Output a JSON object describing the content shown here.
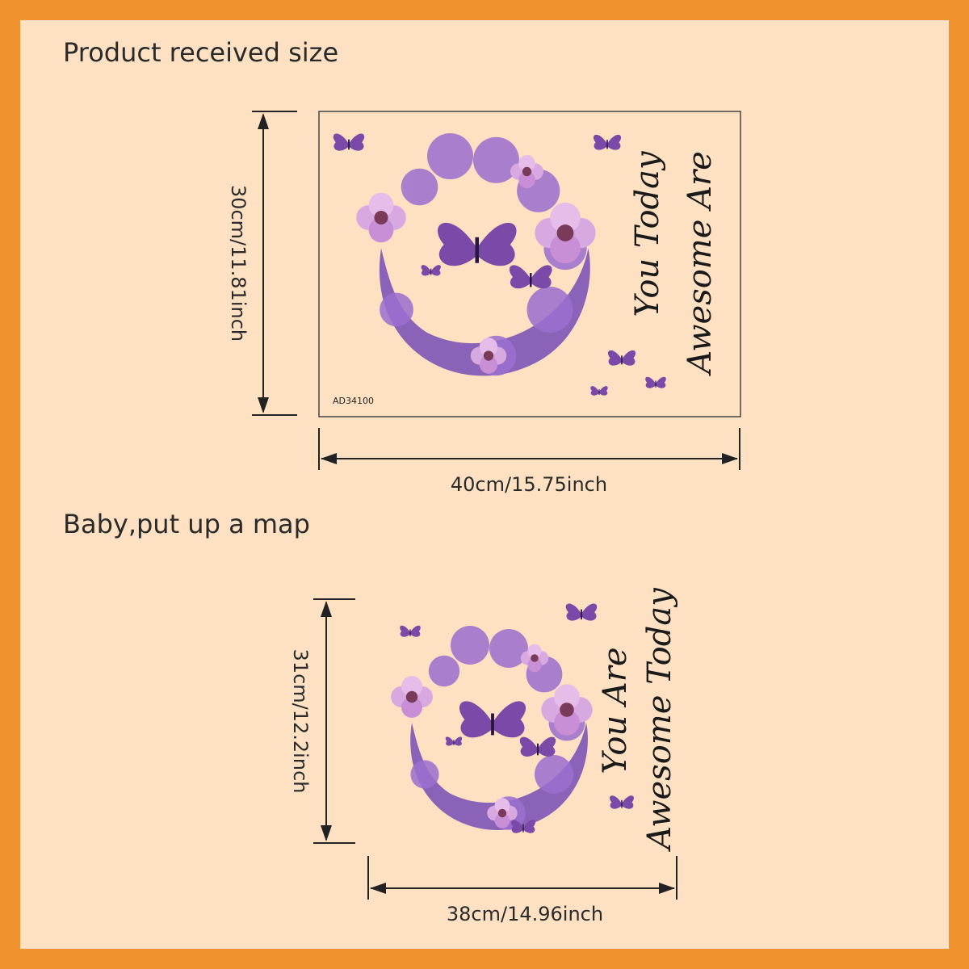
{
  "top": {
    "title": "Product received size",
    "height_label": "30cm/11.81inch",
    "width_label": "40cm/15.75inch",
    "code": "AD34100",
    "lines": [
      "You Today",
      "Awesome Are"
    ]
  },
  "bottom": {
    "title": "Baby,put up a map",
    "height_label": "31cm/12.2inch",
    "width_label": "38cm/14.96inch",
    "lines": [
      "You Are",
      "Awesome Today"
    ]
  }
}
